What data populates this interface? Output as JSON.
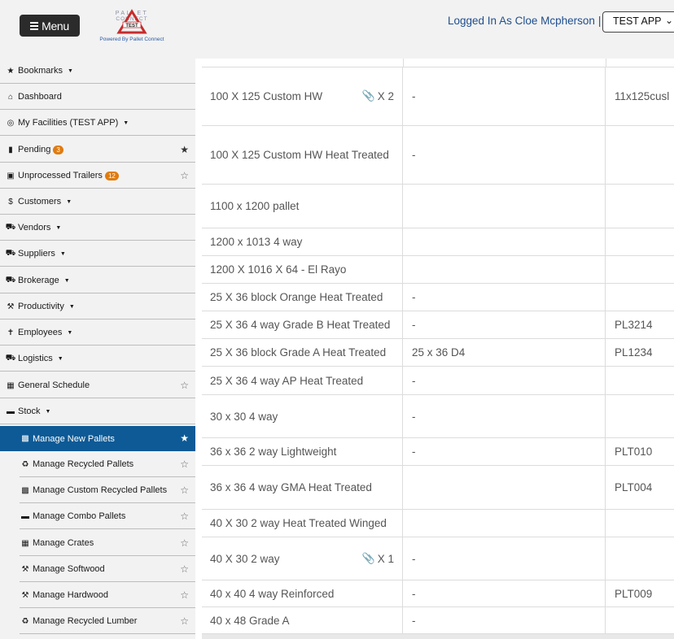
{
  "header": {
    "menu_label": "Menu",
    "logo_text": "PALLET CONNECT",
    "logo_badge": "TEST",
    "powered_by": "Powered By Pallet Connect",
    "logged_in": "Logged In As Cloe Mcpherson",
    "separator": "|",
    "app_selected": "TEST APP"
  },
  "sidebar": {
    "items": [
      {
        "label": "Bookmarks",
        "icon": "star-icon"
      },
      {
        "label": "Dashboard",
        "icon": "home-icon"
      },
      {
        "label": "My Facilities (TEST APP)",
        "icon": "globe-icon"
      },
      {
        "label": "Pending",
        "icon": "clipboard-icon",
        "badge": "3"
      },
      {
        "label": "Unprocessed Trailers",
        "icon": "trailer-icon",
        "badge": "12"
      },
      {
        "label": "Customers",
        "icon": "dollar-icon"
      },
      {
        "label": "Vendors",
        "icon": "truck-icon"
      },
      {
        "label": "Suppliers",
        "icon": "truck-loading-icon"
      },
      {
        "label": "Brokerage",
        "icon": "shipping-icon"
      },
      {
        "label": "Productivity",
        "icon": "hammer-icon"
      },
      {
        "label": "Employees",
        "icon": "person-icon"
      },
      {
        "label": "Logistics",
        "icon": "truck-icon"
      },
      {
        "label": "General Schedule",
        "icon": "calendar-icon"
      },
      {
        "label": "Stock",
        "icon": "pallet-icon"
      }
    ],
    "sub_items": [
      {
        "label": "Manage New Pallets",
        "icon": "pallets-icon"
      },
      {
        "label": "Manage Recycled Pallets",
        "icon": "recycle-icon"
      },
      {
        "label": "Manage Custom Recycled Pallets",
        "icon": "industry-icon"
      },
      {
        "label": "Manage Combo Pallets",
        "icon": "pallet-icon"
      },
      {
        "label": "Manage Crates",
        "icon": "crate-icon"
      },
      {
        "label": "Manage Softwood",
        "icon": "hammer-icon"
      },
      {
        "label": "Manage Hardwood",
        "icon": "hammer-icon"
      },
      {
        "label": "Manage Recycled Lumber",
        "icon": "recycle-icon"
      }
    ]
  },
  "table": {
    "rows": [
      {
        "name": "100 X 125 Custom HW",
        "attachments": "X 2",
        "col2": "-",
        "col3": "11x125cusl"
      },
      {
        "name": "100 X 125 Custom HW Heat Treated",
        "attachments": "",
        "col2": "-",
        "col3": ""
      },
      {
        "name": "1100 x 1200 pallet",
        "attachments": "",
        "col2": "",
        "col3": ""
      },
      {
        "name": "1200 x 1013 4 way",
        "attachments": "",
        "col2": "",
        "col3": ""
      },
      {
        "name": "1200 X 1016 X 64 - El Rayo",
        "attachments": "",
        "col2": "",
        "col3": ""
      },
      {
        "name": "25 X 36 block Orange Heat Treated",
        "attachments": "",
        "col2": "-",
        "col3": ""
      },
      {
        "name": "25 X 36 4 way Grade B Heat Treated",
        "attachments": "",
        "col2": "-",
        "col3": "PL3214"
      },
      {
        "name": "25 X 36 block Grade A Heat Treated",
        "attachments": "",
        "col2": "25 x 36 D4",
        "col3": "PL1234"
      },
      {
        "name": "25 X 36 4 way AP Heat Treated",
        "attachments": "",
        "col2": "-",
        "col3": ""
      },
      {
        "name": "30 x 30 4 way",
        "attachments": "",
        "col2": "-",
        "col3": ""
      },
      {
        "name": "36 x 36 2 way Lightweight",
        "attachments": "",
        "col2": "-",
        "col3": "PLT010"
      },
      {
        "name": "36 x 36 4 way GMA Heat Treated",
        "attachments": "",
        "col2": "",
        "col3": "PLT004"
      },
      {
        "name": "40 X 30 2 way Heat Treated Winged",
        "attachments": "",
        "col2": "",
        "col3": ""
      },
      {
        "name": "40 X 30 2 way",
        "attachments": "X 1",
        "col2": "-",
        "col3": ""
      },
      {
        "name": "40 x 40 4 way Reinforced",
        "attachments": "",
        "col2": "-",
        "col3": "PLT009"
      },
      {
        "name": "40 x 48 Grade A",
        "attachments": "",
        "col2": "-",
        "col3": ""
      }
    ]
  },
  "colors": {
    "active": "#0d5a96",
    "badge": "#e07b0f",
    "link": "#1f4e8c"
  }
}
